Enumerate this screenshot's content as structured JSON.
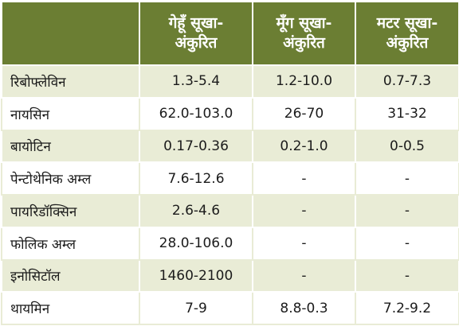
{
  "header": {
    "col1": [
      "गेहूँ सूखा-",
      "अंकुरित"
    ],
    "col2": [
      "मूँग सूखा-",
      "अंकुरित"
    ],
    "col3": [
      "मटर सूखा-",
      "अंकुरित"
    ]
  },
  "rows": [
    {
      "name": "रिबोफ्लेविन",
      "wheat": "1.3-5.4",
      "moong": "1.2-10.0",
      "peas": "0.7-7.3"
    },
    {
      "name": "नायसिन",
      "wheat": "62.0-103.0",
      "moong": "26-70",
      "peas": "31-32"
    },
    {
      "name": "बायोटिन",
      "wheat": "0.17-0.36",
      "moong": "0.2-1.0",
      "peas": "0-0.5"
    },
    {
      "name": "पेन्टोथेनिक अम्ल",
      "wheat": "7.6-12.6",
      "moong": "-",
      "peas": "-"
    },
    {
      "name": "पायरिडॉक्सिन",
      "wheat": "2.6-4.6",
      "moong": "-",
      "peas": "-"
    },
    {
      "name": "फोलिक अम्ल",
      "wheat": "28.0-106.0",
      "moong": "-",
      "peas": "-"
    },
    {
      "name": "इनोसिटॉल",
      "wheat": "1460-2100",
      "moong": "-",
      "peas": "-"
    },
    {
      "name": "थायमिन",
      "wheat": "7-9",
      "moong": "8.8-0.3",
      "peas": "7.2-9.2"
    }
  ]
}
